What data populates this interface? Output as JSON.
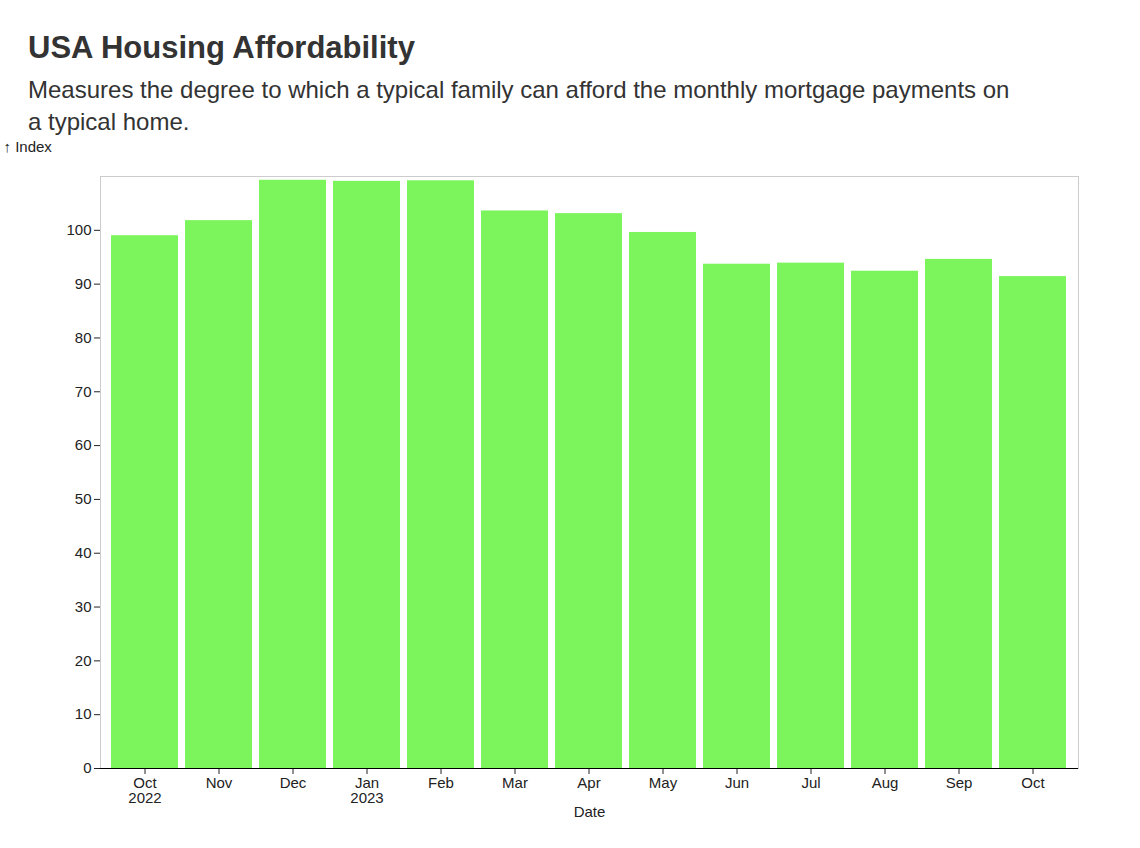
{
  "chart_data": {
    "type": "bar",
    "title": "USA Housing Affordability",
    "subtitle": "Measures the degree to which a typical family can afford the monthly mortgage payments on a typical home.",
    "x_label": "Date",
    "y_label": "↑ Index",
    "categories": [
      "Oct\n2022",
      "Nov",
      "Dec",
      "Jan\n2023",
      "Feb",
      "Mar",
      "Apr",
      "May",
      "Jun",
      "Jul",
      "Aug",
      "Sep",
      "Oct"
    ],
    "values": [
      99.0,
      101.8,
      109.3,
      109.1,
      109.2,
      103.6,
      103.1,
      99.6,
      93.7,
      93.9,
      92.4,
      94.6,
      91.4
    ],
    "color": "#7cf55c",
    "ylim": [
      0,
      110
    ],
    "yticks": [
      0,
      10,
      20,
      30,
      40,
      50,
      60,
      70,
      80,
      90,
      100
    ],
    "grid": false
  }
}
